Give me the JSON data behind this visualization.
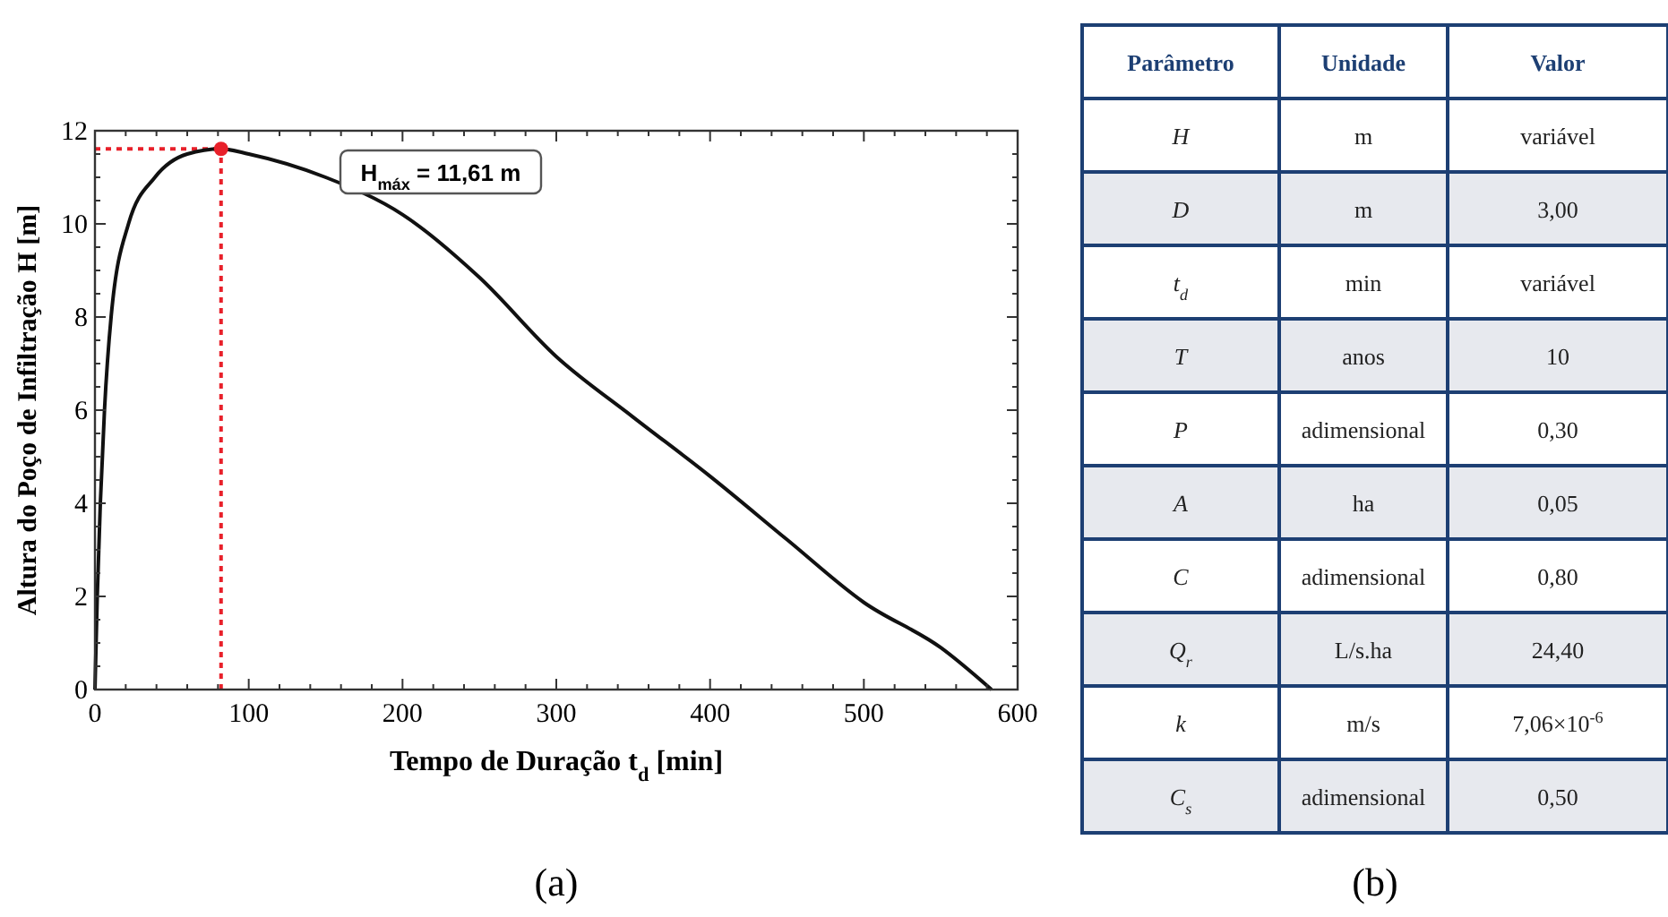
{
  "chart_data": [
    {
      "type": "line",
      "xlabel": "Tempo de Duração t$_{d}$ [min]",
      "ylabel": "Altura do Poço de Infiltração H [m]",
      "xlim": [
        0,
        600
      ],
      "ylim": [
        0,
        12
      ],
      "xticks": [
        0,
        {
          "value": 20,
          "label": null
        },
        {
          "value": 40,
          "label": null
        },
        {
          "value": 60,
          "label": null
        },
        {
          "value": 80,
          "label": null
        },
        100,
        {
          "value": 120,
          "label": null
        },
        {
          "value": 140,
          "label": null
        },
        {
          "value": 160,
          "label": null
        },
        {
          "value": 180,
          "label": null
        },
        200,
        {
          "value": 220,
          "label": null
        },
        {
          "value": 240,
          "label": null
        },
        {
          "value": 260,
          "label": null
        },
        {
          "value": 280,
          "label": null
        },
        300,
        {
          "value": 320,
          "label": null
        },
        {
          "value": 340,
          "label": null
        },
        {
          "value": 360,
          "label": null
        },
        {
          "value": 380,
          "label": null
        },
        400,
        {
          "value": 420,
          "label": null
        },
        {
          "value": 440,
          "label": null
        },
        {
          "value": 460,
          "label": null
        },
        {
          "value": 480,
          "label": null
        },
        500,
        {
          "value": 520,
          "label": null
        },
        {
          "value": 540,
          "label": null
        },
        {
          "value": 560,
          "label": null
        },
        {
          "value": 580,
          "label": null
        },
        600
      ],
      "yticks": [
        0,
        {
          "value": 0.5,
          "label": null
        },
        {
          "value": 1,
          "label": null
        },
        {
          "value": 1.5,
          "label": null
        },
        2,
        {
          "value": 2.5,
          "label": null
        },
        {
          "value": 3,
          "label": null
        },
        {
          "value": 3.5,
          "label": null
        },
        4,
        {
          "value": 4.5,
          "label": null
        },
        {
          "value": 5,
          "label": null
        },
        {
          "value": 5.5,
          "label": null
        },
        6,
        {
          "value": 6.5,
          "label": null
        },
        {
          "value": 7,
          "label": null
        },
        {
          "value": 7.5,
          "label": null
        },
        8,
        {
          "value": 8.5,
          "label": null
        },
        {
          "value": 9,
          "label": null
        },
        {
          "value": 9.5,
          "label": null
        },
        10,
        {
          "value": 10.5,
          "label": null
        },
        {
          "value": 11,
          "label": null
        },
        {
          "value": 11.5,
          "label": null
        },
        12
      ],
      "grid": false,
      "marker": "none",
      "line_style": "solid",
      "series": [
        {
          "type": "line",
          "color": "#111111",
          "x": [
            0,
            1.5,
            3.5,
            6.2,
            10.5,
            21.8,
            39,
            60,
            82,
            100,
            150,
            200,
            250,
            300,
            350,
            400,
            450,
            500,
            550,
            583
          ],
          "values": [
            0,
            2,
            4,
            6,
            8,
            10,
            11,
            11.5,
            11.61,
            11.5,
            11,
            10.2,
            8.85,
            7.15,
            5.85,
            4.58,
            3.22,
            1.87,
            0.9,
            0
          ]
        },
        {
          "type": "scatter",
          "marker": "circle",
          "color": "#e8202a",
          "x": [
            82
          ],
          "values": [
            11.61
          ]
        }
      ],
      "ref_lines": [
        {
          "axis": "x",
          "value": 82,
          "color": "#e8202a",
          "line_style": "dotted"
        },
        {
          "axis": "y",
          "value": 11.61,
          "color": "#e8202a",
          "line_style": "dotted"
        }
      ],
      "annotations": [
        "H$_{máx}$ = 11,61 m",
        "(a)"
      ]
    },
    {
      "type": "other",
      "categories": [
        "Parâmetro",
        "Unidade",
        "Valor"
      ],
      "cell_labels": [
        [
          "H",
          "m",
          "variável"
        ],
        [
          "D",
          "m",
          "3,00"
        ],
        [
          "t$_{d}$",
          "min",
          "variável"
        ],
        [
          "T",
          "anos",
          "10"
        ],
        [
          "P",
          "adimensional",
          "0,30"
        ],
        [
          "A",
          "ha",
          "0,05"
        ],
        [
          "C",
          "adimensional",
          "0,80"
        ],
        [
          "Q$_{r}$",
          "L/s.ha",
          "24,40"
        ],
        [
          "k",
          "m/s",
          "7,06×10$^{-6}$"
        ],
        [
          "C$_{s}$",
          "adimensional",
          "0,50"
        ]
      ],
      "annotations": [
        "(b)"
      ]
    }
  ]
}
